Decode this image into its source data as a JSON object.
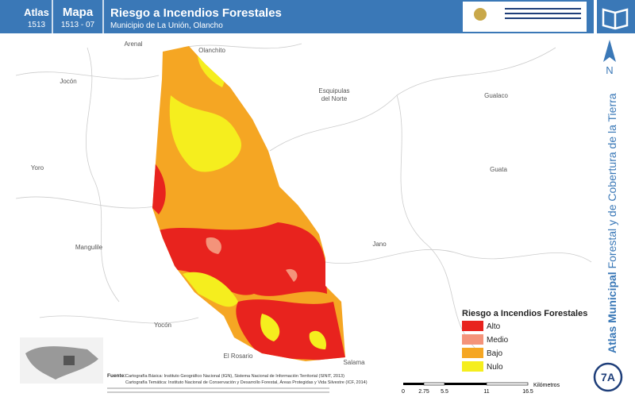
{
  "header": {
    "atlas_label": "Atlas",
    "atlas_number": "1513",
    "map_label": "Mapa",
    "map_number": "1513 - 07",
    "title": "Riesgo a Incendios Forestales",
    "subtitle": "Municipio de La Unión, Olancho"
  },
  "side_title": {
    "bold": "Atlas Municipal",
    "rest": " Forestal y de Cobertura de la Tierra"
  },
  "north": "N",
  "badge": "7A",
  "places": [
    "Arenal",
    "Olanchito",
    "Jocón",
    [
      "Esquipulas",
      "del Norte"
    ],
    "Gualaco",
    "Yoro",
    "Guata",
    "Jano",
    "Mangulile",
    "Yocón",
    "El Rosario",
    "Salama"
  ],
  "legend": {
    "title": "Riesgo a Incendios Forestales",
    "items": [
      {
        "label": "Alto",
        "color": "#e8231e"
      },
      {
        "label": "Medio",
        "color": "#f4937a"
      },
      {
        "label": "Bajo",
        "color": "#f5a623"
      },
      {
        "label": "Nulo",
        "color": "#f5ee1e"
      }
    ]
  },
  "scale": {
    "ticks": [
      "0",
      "2.75",
      "5.5",
      "11",
      "16.5"
    ],
    "unit": "Kilómetros"
  },
  "source": {
    "label": "Fuente:",
    "lines": [
      "Cartografía Básica: Instituto Geográfico Nacional (IGN), Sistema Nacional de Información Territorial (SINIT, 2013)",
      "Cartografía Temática: Instituto Nacional de Conservación y Desarrollo Forestal, Áreas Protegidas y Vida Silvestre (ICF, 2014)"
    ]
  }
}
